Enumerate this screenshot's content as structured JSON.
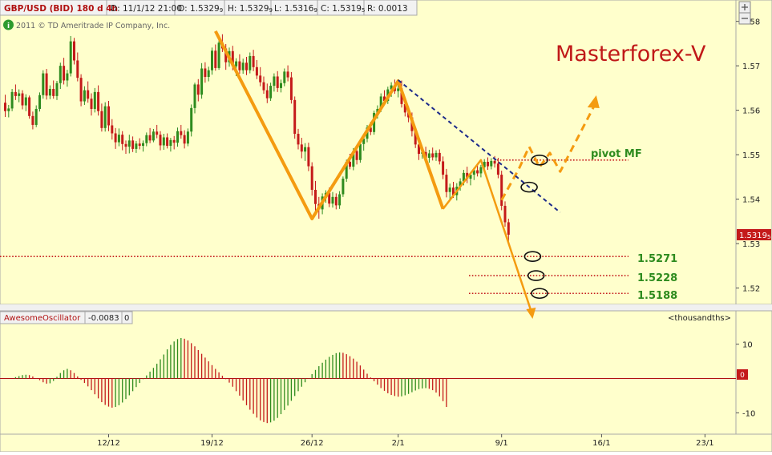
{
  "header": {
    "symbol": "GBP/USD (BID) 180 d 4h",
    "date": "D: 11/1/12 21:00",
    "open_label": "O: 1.5329",
    "open_sub": "9",
    "high_label": "H: 1.5329",
    "high_sub": "9",
    "low_label": "L: 1.5316",
    "low_sub": "9",
    "close_label": "C: 1.5319",
    "close_sub": "5",
    "range_label": "R: 0.0013",
    "copyright": "2011 © TD Ameritrade IP Company, Inc."
  },
  "watermark": "Masterforex-V",
  "current_price": "1.5319",
  "current_price_sub": "5",
  "annotations": {
    "pivot": "pivot MF",
    "levels": [
      {
        "label": "1.5271",
        "value": 1.5271
      },
      {
        "label": "1.5228",
        "value": 1.5228
      },
      {
        "label": "1.5188",
        "value": 1.5188
      }
    ],
    "pivot_level": 1.5488
  },
  "colors": {
    "background": "#ffffcc",
    "up": "#2e8b1e",
    "down": "#c41a1a",
    "wave": "#f49b10",
    "trend": "#1c2a8a",
    "levels": "#c41a1a",
    "label_green": "#2e8b1e",
    "watermark": "#c01818"
  },
  "oscillator": {
    "name": "AwesomeOscillator",
    "value": "-0.0083",
    "zero": "0",
    "units": "<thousandths>",
    "zero_tag": "0"
  },
  "chart_data": {
    "type": "candlestick",
    "y_ticks": [
      "1.58",
      "1.57",
      "1.56",
      "1.55",
      "1.54",
      "1.53",
      "1.52"
    ],
    "y_tick_values": [
      1.58,
      1.57,
      1.56,
      1.55,
      1.54,
      1.53,
      1.52
    ],
    "ylim": [
      1.5165,
      1.5812
    ],
    "x_ticks": [
      "12/12",
      "19/12",
      "26/12",
      "2/1",
      "9/1",
      "16/1",
      "23/1"
    ],
    "x_tick_index": [
      30,
      60,
      89,
      114,
      144,
      173,
      203
    ],
    "candles": [
      [
        0,
        1.5617,
        1.5635,
        1.5585,
        1.5598
      ],
      [
        1,
        1.5598,
        1.5612,
        1.5584,
        1.5604
      ],
      [
        2,
        1.5604,
        1.5648,
        1.5598,
        1.5641
      ],
      [
        3,
        1.5641,
        1.5658,
        1.5623,
        1.5632
      ],
      [
        4,
        1.5632,
        1.5647,
        1.5618,
        1.5638
      ],
      [
        5,
        1.5638,
        1.5645,
        1.5602,
        1.5611
      ],
      [
        6,
        1.5611,
        1.5636,
        1.5598,
        1.5629
      ],
      [
        7,
        1.5629,
        1.5633,
        1.5581,
        1.5587
      ],
      [
        8,
        1.5587,
        1.5597,
        1.5557,
        1.5567
      ],
      [
        9,
        1.5567,
        1.5611,
        1.5562,
        1.5603
      ],
      [
        10,
        1.5603,
        1.564,
        1.5597,
        1.5634
      ],
      [
        11,
        1.5634,
        1.569,
        1.5626,
        1.5683
      ],
      [
        12,
        1.5683,
        1.5693,
        1.5624,
        1.5633
      ],
      [
        13,
        1.5633,
        1.5656,
        1.5625,
        1.5648
      ],
      [
        14,
        1.5648,
        1.5667,
        1.5626,
        1.5632
      ],
      [
        15,
        1.5632,
        1.5666,
        1.5623,
        1.5661
      ],
      [
        16,
        1.5661,
        1.5707,
        1.5648,
        1.57
      ],
      [
        17,
        1.57,
        1.5718,
        1.5658,
        1.5667
      ],
      [
        18,
        1.5667,
        1.5691,
        1.5653,
        1.5683
      ],
      [
        19,
        1.5683,
        1.5767,
        1.5676,
        1.5755
      ],
      [
        20,
        1.5755,
        1.5763,
        1.5703,
        1.5712
      ],
      [
        21,
        1.5712,
        1.573,
        1.5665,
        1.5673
      ],
      [
        22,
        1.5673,
        1.5681,
        1.5609,
        1.562
      ],
      [
        23,
        1.562,
        1.5654,
        1.5612,
        1.5645
      ],
      [
        24,
        1.5645,
        1.5665,
        1.5617,
        1.5626
      ],
      [
        25,
        1.5626,
        1.5638,
        1.5588,
        1.5603
      ],
      [
        26,
        1.5603,
        1.565,
        1.5595,
        1.5641
      ],
      [
        27,
        1.5641,
        1.5656,
        1.5588,
        1.5598
      ],
      [
        28,
        1.5598,
        1.5615,
        1.5552,
        1.556
      ],
      [
        29,
        1.556,
        1.5618,
        1.5552,
        1.5609
      ],
      [
        30,
        1.5609,
        1.5621,
        1.5553,
        1.5566
      ],
      [
        31,
        1.5566,
        1.558,
        1.5534,
        1.5548
      ],
      [
        32,
        1.5548,
        1.556,
        1.5513,
        1.5528
      ],
      [
        33,
        1.5528,
        1.5559,
        1.5519,
        1.5545
      ],
      [
        34,
        1.5545,
        1.5553,
        1.551,
        1.5524
      ],
      [
        35,
        1.5524,
        1.5532,
        1.5502,
        1.5518
      ],
      [
        36,
        1.5518,
        1.5545,
        1.5503,
        1.5532
      ],
      [
        37,
        1.5532,
        1.5541,
        1.5506,
        1.5513
      ],
      [
        38,
        1.5513,
        1.5531,
        1.5504,
        1.5525
      ],
      [
        39,
        1.5525,
        1.5537,
        1.5512,
        1.552
      ],
      [
        40,
        1.552,
        1.5532,
        1.5507,
        1.5526
      ],
      [
        41,
        1.5526,
        1.555,
        1.5519,
        1.5544
      ],
      [
        42,
        1.5544,
        1.556,
        1.5526,
        1.5532
      ],
      [
        43,
        1.5532,
        1.5558,
        1.5528,
        1.5552
      ],
      [
        44,
        1.5552,
        1.5567,
        1.5537,
        1.5545
      ],
      [
        45,
        1.5545,
        1.5553,
        1.551,
        1.5521
      ],
      [
        46,
        1.5521,
        1.5547,
        1.5511,
        1.5539
      ],
      [
        47,
        1.5539,
        1.5548,
        1.5514,
        1.552
      ],
      [
        48,
        1.552,
        1.5538,
        1.5507,
        1.5533
      ],
      [
        49,
        1.5533,
        1.5542,
        1.5512,
        1.5527
      ],
      [
        50,
        1.5527,
        1.5561,
        1.5518,
        1.5553
      ],
      [
        51,
        1.5553,
        1.5567,
        1.5536,
        1.5544
      ],
      [
        52,
        1.5544,
        1.5555,
        1.5514,
        1.5525
      ],
      [
        53,
        1.5525,
        1.5559,
        1.5519,
        1.5552
      ],
      [
        54,
        1.5552,
        1.5613,
        1.5541,
        1.5605
      ],
      [
        55,
        1.5605,
        1.5662,
        1.5593,
        1.5658
      ],
      [
        56,
        1.5658,
        1.567,
        1.562,
        1.5635
      ],
      [
        57,
        1.5635,
        1.5706,
        1.5626,
        1.5694
      ],
      [
        58,
        1.5694,
        1.5708,
        1.5662,
        1.5675
      ],
      [
        59,
        1.5675,
        1.5698,
        1.5665,
        1.569
      ],
      [
        60,
        1.569,
        1.5741,
        1.568,
        1.5734
      ],
      [
        61,
        1.5734,
        1.5748,
        1.5689,
        1.5695
      ],
      [
        62,
        1.5695,
        1.576,
        1.5691,
        1.5752
      ],
      [
        63,
        1.5752,
        1.5771,
        1.5731,
        1.5739
      ],
      [
        64,
        1.5739,
        1.5749,
        1.5691,
        1.5708
      ],
      [
        65,
        1.5708,
        1.5741,
        1.5698,
        1.5733
      ],
      [
        66,
        1.5733,
        1.5745,
        1.569,
        1.5699
      ],
      [
        67,
        1.5699,
        1.5717,
        1.5677,
        1.571
      ],
      [
        68,
        1.571,
        1.5726,
        1.5682,
        1.569
      ],
      [
        69,
        1.569,
        1.5716,
        1.5682,
        1.5707
      ],
      [
        70,
        1.5707,
        1.572,
        1.5679,
        1.569
      ],
      [
        71,
        1.569,
        1.573,
        1.5683,
        1.5722
      ],
      [
        72,
        1.5722,
        1.5736,
        1.5688,
        1.5697
      ],
      [
        73,
        1.5697,
        1.5713,
        1.567,
        1.5678
      ],
      [
        74,
        1.5678,
        1.5697,
        1.5654,
        1.5663
      ],
      [
        75,
        1.5663,
        1.5676,
        1.5637,
        1.5645
      ],
      [
        76,
        1.5645,
        1.566,
        1.5616,
        1.5627
      ],
      [
        77,
        1.5627,
        1.5662,
        1.5621,
        1.5655
      ],
      [
        78,
        1.5655,
        1.5683,
        1.5642,
        1.5676
      ],
      [
        79,
        1.5676,
        1.5688,
        1.5641,
        1.565
      ],
      [
        80,
        1.565,
        1.5669,
        1.564,
        1.5661
      ],
      [
        81,
        1.5661,
        1.5694,
        1.5654,
        1.5687
      ],
      [
        82,
        1.5687,
        1.5701,
        1.5665,
        1.5674
      ],
      [
        83,
        1.5674,
        1.5686,
        1.5615,
        1.5623
      ],
      [
        84,
        1.5623,
        1.5631,
        1.5536,
        1.5547
      ],
      [
        85,
        1.5547,
        1.5558,
        1.5512,
        1.5523
      ],
      [
        86,
        1.5523,
        1.5538,
        1.5492,
        1.5507
      ],
      [
        87,
        1.5507,
        1.5526,
        1.5486,
        1.5517
      ],
      [
        88,
        1.5517,
        1.5527,
        1.5463,
        1.5474
      ],
      [
        89,
        1.5474,
        1.5483,
        1.5408,
        1.5421
      ],
      [
        90,
        1.5421,
        1.5441,
        1.5373,
        1.5389
      ],
      [
        91,
        1.5389,
        1.5405,
        1.5356,
        1.5377
      ],
      [
        92,
        1.5377,
        1.5413,
        1.5366,
        1.5406
      ],
      [
        93,
        1.5406,
        1.542,
        1.5392,
        1.5414
      ],
      [
        94,
        1.5414,
        1.5426,
        1.5382,
        1.539
      ],
      [
        95,
        1.539,
        1.5416,
        1.5381,
        1.5405
      ],
      [
        96,
        1.5405,
        1.5413,
        1.5377,
        1.5386
      ],
      [
        97,
        1.5386,
        1.5418,
        1.5378,
        1.5411
      ],
      [
        98,
        1.5411,
        1.5451,
        1.5405,
        1.5446
      ],
      [
        99,
        1.5446,
        1.5489,
        1.5439,
        1.5484
      ],
      [
        100,
        1.5484,
        1.5502,
        1.5467,
        1.5473
      ],
      [
        101,
        1.5473,
        1.5515,
        1.5465,
        1.5508
      ],
      [
        102,
        1.5508,
        1.5522,
        1.5478,
        1.5488
      ],
      [
        103,
        1.5488,
        1.553,
        1.5482,
        1.5524
      ],
      [
        104,
        1.5524,
        1.5543,
        1.5509,
        1.5536
      ],
      [
        105,
        1.5536,
        1.5567,
        1.5528,
        1.5561
      ],
      [
        106,
        1.5561,
        1.5574,
        1.5544,
        1.5551
      ],
      [
        107,
        1.5551,
        1.5599,
        1.5545,
        1.5594
      ],
      [
        108,
        1.5594,
        1.5611,
        1.5581,
        1.5603
      ],
      [
        109,
        1.5603,
        1.5638,
        1.5596,
        1.5631
      ],
      [
        110,
        1.5631,
        1.5645,
        1.5613,
        1.5621
      ],
      [
        111,
        1.5621,
        1.5653,
        1.5614,
        1.5647
      ],
      [
        112,
        1.5647,
        1.5663,
        1.563,
        1.5656
      ],
      [
        113,
        1.5656,
        1.5669,
        1.5637,
        1.5643
      ],
      [
        114,
        1.5643,
        1.566,
        1.5629,
        1.5649
      ],
      [
        115,
        1.5649,
        1.5667,
        1.5606,
        1.5614
      ],
      [
        116,
        1.5614,
        1.5623,
        1.5586,
        1.5595
      ],
      [
        117,
        1.5595,
        1.5609,
        1.5573,
        1.5584
      ],
      [
        118,
        1.5584,
        1.5595,
        1.5541,
        1.5553
      ],
      [
        119,
        1.5553,
        1.5562,
        1.5515,
        1.5523
      ],
      [
        120,
        1.5523,
        1.553,
        1.5488,
        1.5502
      ],
      [
        121,
        1.5502,
        1.5514,
        1.5491,
        1.5506
      ],
      [
        122,
        1.5506,
        1.5518,
        1.5484,
        1.5493
      ],
      [
        123,
        1.5493,
        1.5511,
        1.5482,
        1.5503
      ],
      [
        124,
        1.5503,
        1.5516,
        1.5487,
        1.5494
      ],
      [
        125,
        1.5494,
        1.551,
        1.5486,
        1.5504
      ],
      [
        126,
        1.5504,
        1.5512,
        1.5478,
        1.5485
      ],
      [
        127,
        1.5485,
        1.5496,
        1.5445,
        1.5455
      ],
      [
        128,
        1.5455,
        1.5468,
        1.5404,
        1.5416
      ],
      [
        129,
        1.5416,
        1.5435,
        1.5397,
        1.5426
      ],
      [
        130,
        1.5426,
        1.5439,
        1.5403,
        1.5409
      ],
      [
        131,
        1.5409,
        1.5436,
        1.5397,
        1.5428
      ],
      [
        132,
        1.5428,
        1.5447,
        1.5419,
        1.544
      ],
      [
        133,
        1.544,
        1.5466,
        1.5431,
        1.5459
      ],
      [
        134,
        1.5459,
        1.5473,
        1.5436,
        1.5446
      ],
      [
        135,
        1.5446,
        1.5461,
        1.5431,
        1.5455
      ],
      [
        136,
        1.5455,
        1.5471,
        1.5443,
        1.5465
      ],
      [
        137,
        1.5465,
        1.548,
        1.5451,
        1.5458
      ],
      [
        138,
        1.5458,
        1.5477,
        1.5449,
        1.5472
      ],
      [
        139,
        1.5472,
        1.549,
        1.5462,
        1.5484
      ],
      [
        140,
        1.5484,
        1.5494,
        1.5466,
        1.5474
      ],
      [
        141,
        1.5474,
        1.5492,
        1.5467,
        1.5486
      ],
      [
        142,
        1.5486,
        1.5497,
        1.5471,
        1.548
      ],
      [
        143,
        1.548,
        1.5493,
        1.5447,
        1.5455
      ],
      [
        144,
        1.5455,
        1.5464,
        1.5375,
        1.5385
      ],
      [
        145,
        1.5385,
        1.5395,
        1.5338,
        1.5348
      ],
      [
        146,
        1.5348,
        1.5356,
        1.5302,
        1.532
      ]
    ],
    "waves": {
      "points": [
        [
          61,
          1.5778
        ],
        [
          89,
          1.5356
        ],
        [
          114,
          1.5666
        ],
        [
          127,
          1.5378
        ],
        [
          138,
          1.5488
        ],
        [
          153,
          1.5138
        ]
      ],
      "projection": [
        [
          144,
          1.5398
        ],
        [
          149,
          1.5468
        ],
        [
          152,
          1.5518
        ],
        [
          155,
          1.5472
        ],
        [
          158,
          1.5504
        ],
        [
          161,
          1.5462
        ],
        [
          171,
          1.5612
        ]
      ]
    },
    "trendline": [
      [
        114,
        1.5668
      ],
      [
        161,
        1.537
      ]
    ],
    "ao": {
      "ylim": [
        -16,
        16
      ],
      "ticks": [
        "10",
        "0",
        "-10"
      ],
      "tick_values": [
        10,
        0,
        -10
      ],
      "values": [
        0.4,
        0.7,
        1.0,
        1.1,
        1.0,
        0.6,
        0.1,
        -0.5,
        -1.1,
        -1.5,
        -1.4,
        -0.7,
        0.5,
        1.6,
        2.4,
        2.8,
        2.4,
        1.6,
        0.6,
        -0.4,
        -1.3,
        -2.3,
        -3.4,
        -4.6,
        -5.8,
        -6.9,
        -7.7,
        -8.2,
        -8.5,
        -8.3,
        -7.8,
        -7.0,
        -6.0,
        -4.9,
        -3.7,
        -2.5,
        -1.3,
        -0.2,
        0.9,
        2.0,
        3.1,
        4.3,
        5.6,
        7.0,
        8.5,
        9.8,
        10.8,
        11.5,
        11.8,
        11.6,
        11.1,
        10.3,
        9.4,
        8.3,
        7.2,
        6.1,
        5.0,
        3.9,
        2.8,
        1.8,
        0.8,
        -0.2,
        -1.2,
        -2.4,
        -3.7,
        -5.0,
        -6.4,
        -7.8,
        -9.1,
        -10.3,
        -11.4,
        -12.2,
        -12.7,
        -13.0,
        -12.8,
        -12.3,
        -11.5,
        -10.4,
        -9.2,
        -7.9,
        -6.5,
        -5.1,
        -3.7,
        -2.4,
        -1.1,
        0.1,
        1.3,
        2.5,
        3.6,
        4.6,
        5.5,
        6.3,
        6.9,
        7.4,
        7.6,
        7.5,
        7.1,
        6.5,
        5.8,
        4.9,
        3.8,
        2.6,
        1.4,
        0.3,
        -0.8,
        -1.8,
        -2.8,
        -3.6,
        -4.3,
        -4.8,
        -5.1,
        -5.3,
        -5.2,
        -4.9,
        -4.5,
        -4.0,
        -3.5,
        -3.1,
        -2.9,
        -2.8,
        -3.0,
        -3.4,
        -4.1,
        -5.2,
        -6.6,
        -8.3
      ]
    }
  }
}
